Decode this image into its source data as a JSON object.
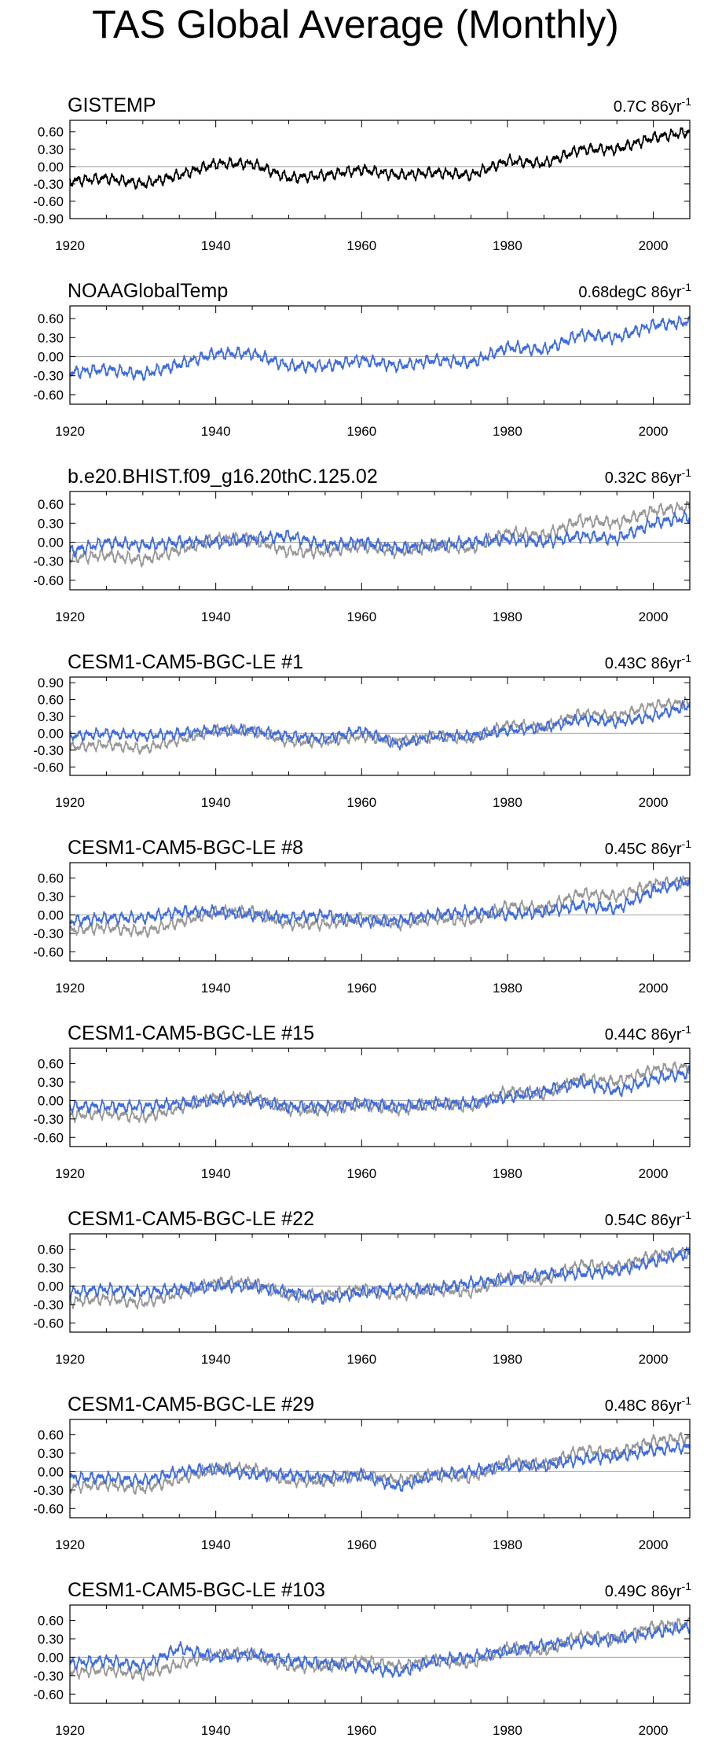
{
  "title": "TAS Global Average (Monthly)",
  "colors": {
    "observed": "#000000",
    "model": "#3f6ce0",
    "reference": "#999999",
    "zero_line": "#a0a0a0"
  },
  "chart_data": [
    {
      "type": "line",
      "panel_title": "GISTEMP",
      "trend_value": "0.7C 86yr",
      "trend_exp": "-1",
      "xlim": [
        1920,
        2005
      ],
      "ylim": [
        -0.9,
        0.8
      ],
      "xticks": [
        "1920",
        "1940",
        "1960",
        "1980",
        "2000"
      ],
      "yticks": [
        "0.60",
        "0.30",
        "0.00",
        "-0.30",
        "-0.60",
        "-0.90"
      ],
      "series": [
        {
          "role": "observed",
          "x": [
            1920,
            1925,
            1930,
            1935,
            1940,
            1945,
            1950,
            1955,
            1960,
            1965,
            1970,
            1975,
            1980,
            1985,
            1990,
            1995,
            2000,
            2005
          ],
          "values": [
            -0.25,
            -0.2,
            -0.3,
            -0.15,
            0.05,
            0.05,
            -0.2,
            -0.15,
            -0.05,
            -0.15,
            -0.1,
            -0.15,
            0.1,
            0.05,
            0.3,
            0.3,
            0.5,
            0.6
          ]
        }
      ]
    },
    {
      "type": "line",
      "panel_title": "NOAAGlobalTemp",
      "trend_value": "0.68degC 86yr",
      "trend_exp": "-1",
      "xlim": [
        1920,
        2005
      ],
      "ylim": [
        -0.75,
        0.8
      ],
      "xticks": [
        "1920",
        "1940",
        "1960",
        "1980",
        "2000"
      ],
      "yticks": [
        "0.60",
        "0.30",
        "0.00",
        "-0.30",
        "-0.60"
      ],
      "series": [
        {
          "role": "model",
          "x": [
            1920,
            1925,
            1930,
            1935,
            1940,
            1945,
            1950,
            1955,
            1960,
            1965,
            1970,
            1975,
            1980,
            1985,
            1990,
            1995,
            2000,
            2005
          ],
          "values": [
            -0.25,
            -0.2,
            -0.28,
            -0.12,
            0.05,
            0.05,
            -0.15,
            -0.15,
            -0.05,
            -0.15,
            -0.05,
            -0.1,
            0.15,
            0.1,
            0.35,
            0.3,
            0.5,
            0.55
          ]
        }
      ]
    },
    {
      "type": "line",
      "panel_title": "b.e20.BHIST.f09_g16.20thC.125.02",
      "trend_value": "0.32C 86yr",
      "trend_exp": "-1",
      "xlim": [
        1920,
        2005
      ],
      "ylim": [
        -0.75,
        0.8
      ],
      "xticks": [
        "1920",
        "1940",
        "1960",
        "1980",
        "2000"
      ],
      "yticks": [
        "0.60",
        "0.30",
        "0.00",
        "-0.30",
        "-0.60"
      ],
      "series": [
        {
          "role": "reference",
          "x": [
            1920,
            1925,
            1930,
            1935,
            1940,
            1945,
            1950,
            1955,
            1960,
            1965,
            1970,
            1975,
            1980,
            1985,
            1990,
            1995,
            2000,
            2005
          ],
          "values": [
            -0.25,
            -0.2,
            -0.28,
            -0.12,
            0.05,
            0.05,
            -0.15,
            -0.15,
            -0.05,
            -0.15,
            -0.05,
            -0.1,
            0.15,
            0.1,
            0.35,
            0.3,
            0.5,
            0.55
          ]
        },
        {
          "role": "model",
          "x": [
            1920,
            1925,
            1930,
            1935,
            1940,
            1945,
            1950,
            1955,
            1960,
            1965,
            1970,
            1975,
            1980,
            1985,
            1990,
            1995,
            2000,
            2005
          ],
          "values": [
            -0.15,
            0.0,
            -0.05,
            0.0,
            0.0,
            0.05,
            0.1,
            -0.05,
            0.0,
            -0.1,
            -0.05,
            0.0,
            0.05,
            0.0,
            0.1,
            0.05,
            0.3,
            0.4
          ]
        }
      ]
    },
    {
      "type": "line",
      "panel_title": "CESM1-CAM5-BGC-LE #1",
      "trend_value": "0.43C 86yr",
      "trend_exp": "-1",
      "xlim": [
        1920,
        2005
      ],
      "ylim": [
        -0.75,
        1.0
      ],
      "xticks": [
        "1920",
        "1940",
        "1960",
        "1980",
        "2000"
      ],
      "yticks": [
        "0.90",
        "0.60",
        "0.30",
        "0.00",
        "-0.30",
        "-0.60"
      ],
      "series": [
        {
          "role": "reference",
          "x": [
            1920,
            1925,
            1930,
            1935,
            1940,
            1945,
            1950,
            1955,
            1960,
            1965,
            1970,
            1975,
            1980,
            1985,
            1990,
            1995,
            2000,
            2005
          ],
          "values": [
            -0.25,
            -0.2,
            -0.28,
            -0.12,
            0.05,
            0.05,
            -0.15,
            -0.15,
            -0.05,
            -0.15,
            -0.05,
            -0.1,
            0.15,
            0.1,
            0.35,
            0.3,
            0.5,
            0.55
          ]
        },
        {
          "role": "model",
          "x": [
            1920,
            1925,
            1930,
            1935,
            1940,
            1945,
            1950,
            1955,
            1960,
            1965,
            1970,
            1975,
            1980,
            1985,
            1990,
            1995,
            2000,
            2005
          ],
          "values": [
            -0.05,
            0.0,
            -0.05,
            0.0,
            0.05,
            0.05,
            -0.05,
            -0.1,
            0.05,
            -0.2,
            -0.05,
            -0.05,
            0.05,
            0.1,
            0.25,
            0.2,
            0.3,
            0.5
          ]
        }
      ]
    },
    {
      "type": "line",
      "panel_title": "CESM1-CAM5-BGC-LE #8",
      "trend_value": "0.45C 86yr",
      "trend_exp": "-1",
      "xlim": [
        1920,
        2005
      ],
      "ylim": [
        -0.75,
        0.85
      ],
      "xticks": [
        "1920",
        "1940",
        "1960",
        "1980",
        "2000"
      ],
      "yticks": [
        "0.60",
        "0.30",
        "0.00",
        "-0.30",
        "-0.60"
      ],
      "series": [
        {
          "role": "reference",
          "x": [
            1920,
            1925,
            1930,
            1935,
            1940,
            1945,
            1950,
            1955,
            1960,
            1965,
            1970,
            1975,
            1980,
            1985,
            1990,
            1995,
            2000,
            2005
          ],
          "values": [
            -0.25,
            -0.2,
            -0.28,
            -0.12,
            0.05,
            0.05,
            -0.15,
            -0.15,
            -0.05,
            -0.15,
            -0.05,
            -0.1,
            0.15,
            0.1,
            0.35,
            0.3,
            0.5,
            0.55
          ]
        },
        {
          "role": "model",
          "x": [
            1920,
            1925,
            1930,
            1935,
            1940,
            1945,
            1950,
            1955,
            1960,
            1965,
            1970,
            1975,
            1980,
            1985,
            1990,
            1995,
            2000,
            2005
          ],
          "values": [
            -0.1,
            -0.05,
            -0.05,
            0.05,
            0.05,
            0.0,
            -0.05,
            0.0,
            -0.1,
            -0.1,
            0.0,
            0.05,
            0.0,
            0.05,
            0.15,
            0.1,
            0.4,
            0.55
          ]
        }
      ]
    },
    {
      "type": "line",
      "panel_title": "CESM1-CAM5-BGC-LE #15",
      "trend_value": "0.44C 86yr",
      "trend_exp": "-1",
      "xlim": [
        1920,
        2005
      ],
      "ylim": [
        -0.75,
        0.85
      ],
      "xticks": [
        "1920",
        "1940",
        "1960",
        "1980",
        "2000"
      ],
      "yticks": [
        "0.60",
        "0.30",
        "0.00",
        "-0.30",
        "-0.60"
      ],
      "series": [
        {
          "role": "reference",
          "x": [
            1920,
            1925,
            1930,
            1935,
            1940,
            1945,
            1950,
            1955,
            1960,
            1965,
            1970,
            1975,
            1980,
            1985,
            1990,
            1995,
            2000,
            2005
          ],
          "values": [
            -0.25,
            -0.2,
            -0.28,
            -0.12,
            0.05,
            0.05,
            -0.15,
            -0.15,
            -0.05,
            -0.15,
            -0.05,
            -0.1,
            0.15,
            0.1,
            0.35,
            0.3,
            0.5,
            0.55
          ]
        },
        {
          "role": "model",
          "x": [
            1920,
            1925,
            1930,
            1935,
            1940,
            1945,
            1950,
            1955,
            1960,
            1965,
            1970,
            1975,
            1980,
            1985,
            1990,
            1995,
            2000,
            2005
          ],
          "values": [
            -0.1,
            -0.1,
            -0.1,
            -0.05,
            0.0,
            0.0,
            -0.1,
            -0.1,
            -0.05,
            -0.1,
            -0.05,
            -0.05,
            0.05,
            0.15,
            0.3,
            0.15,
            0.35,
            0.45
          ]
        }
      ]
    },
    {
      "type": "line",
      "panel_title": "CESM1-CAM5-BGC-LE #22",
      "trend_value": "0.54C 86yr",
      "trend_exp": "-1",
      "xlim": [
        1920,
        2005
      ],
      "ylim": [
        -0.75,
        0.85
      ],
      "xticks": [
        "1920",
        "1940",
        "1960",
        "1980",
        "2000"
      ],
      "yticks": [
        "0.60",
        "0.30",
        "0.00",
        "-0.30",
        "-0.60"
      ],
      "series": [
        {
          "role": "reference",
          "x": [
            1920,
            1925,
            1930,
            1935,
            1940,
            1945,
            1950,
            1955,
            1960,
            1965,
            1970,
            1975,
            1980,
            1985,
            1990,
            1995,
            2000,
            2005
          ],
          "values": [
            -0.25,
            -0.2,
            -0.28,
            -0.12,
            0.05,
            0.05,
            -0.15,
            -0.15,
            -0.05,
            -0.15,
            -0.05,
            -0.1,
            0.15,
            0.1,
            0.35,
            0.3,
            0.5,
            0.55
          ]
        },
        {
          "role": "model",
          "x": [
            1920,
            1925,
            1930,
            1935,
            1940,
            1945,
            1950,
            1955,
            1960,
            1965,
            1970,
            1975,
            1980,
            1985,
            1990,
            1995,
            2000,
            2005
          ],
          "values": [
            -0.1,
            -0.05,
            -0.1,
            -0.05,
            0.0,
            0.0,
            -0.1,
            -0.2,
            -0.1,
            -0.05,
            -0.05,
            0.05,
            0.1,
            0.2,
            0.2,
            0.25,
            0.4,
            0.55
          ]
        }
      ]
    },
    {
      "type": "line",
      "panel_title": "CESM1-CAM5-BGC-LE #29",
      "trend_value": "0.48C 86yr",
      "trend_exp": "-1",
      "xlim": [
        1920,
        2005
      ],
      "ylim": [
        -0.75,
        0.85
      ],
      "xticks": [
        "1920",
        "1940",
        "1960",
        "1980",
        "2000"
      ],
      "yticks": [
        "0.60",
        "0.30",
        "0.00",
        "-0.30",
        "-0.60"
      ],
      "series": [
        {
          "role": "reference",
          "x": [
            1920,
            1925,
            1930,
            1935,
            1940,
            1945,
            1950,
            1955,
            1960,
            1965,
            1970,
            1975,
            1980,
            1985,
            1990,
            1995,
            2000,
            2005
          ],
          "values": [
            -0.25,
            -0.2,
            -0.28,
            -0.12,
            0.05,
            0.05,
            -0.15,
            -0.15,
            -0.05,
            -0.15,
            -0.05,
            -0.1,
            0.15,
            0.1,
            0.35,
            0.3,
            0.5,
            0.55
          ]
        },
        {
          "role": "model",
          "x": [
            1920,
            1925,
            1930,
            1935,
            1940,
            1945,
            1950,
            1955,
            1960,
            1965,
            1970,
            1975,
            1980,
            1985,
            1990,
            1995,
            2000,
            2005
          ],
          "values": [
            -0.1,
            -0.1,
            -0.15,
            0.0,
            0.05,
            -0.05,
            -0.05,
            -0.1,
            -0.05,
            -0.25,
            -0.05,
            0.0,
            0.1,
            0.1,
            0.2,
            0.25,
            0.35,
            0.4
          ]
        }
      ]
    },
    {
      "type": "line",
      "panel_title": "CESM1-CAM5-BGC-LE #103",
      "trend_value": "0.49C 86yr",
      "trend_exp": "-1",
      "xlim": [
        1920,
        2005
      ],
      "ylim": [
        -0.75,
        0.85
      ],
      "xticks": [
        "1920",
        "1940",
        "1960",
        "1980",
        "2000"
      ],
      "yticks": [
        "0.60",
        "0.30",
        "0.00",
        "-0.30",
        "-0.60"
      ],
      "series": [
        {
          "role": "reference",
          "x": [
            1920,
            1925,
            1930,
            1935,
            1940,
            1945,
            1950,
            1955,
            1960,
            1965,
            1970,
            1975,
            1980,
            1985,
            1990,
            1995,
            2000,
            2005
          ],
          "values": [
            -0.25,
            -0.2,
            -0.28,
            -0.12,
            0.05,
            0.05,
            -0.15,
            -0.15,
            -0.05,
            -0.15,
            -0.05,
            -0.1,
            0.15,
            0.1,
            0.35,
            0.3,
            0.5,
            0.55
          ]
        },
        {
          "role": "model",
          "x": [
            1920,
            1925,
            1930,
            1935,
            1940,
            1945,
            1950,
            1955,
            1960,
            1965,
            1970,
            1975,
            1980,
            1985,
            1990,
            1995,
            2000,
            2005
          ],
          "values": [
            -0.1,
            -0.05,
            -0.15,
            0.15,
            0.0,
            0.05,
            -0.05,
            -0.1,
            -0.15,
            -0.25,
            -0.05,
            0.0,
            0.1,
            0.2,
            0.25,
            0.3,
            0.4,
            0.5
          ]
        }
      ]
    }
  ]
}
